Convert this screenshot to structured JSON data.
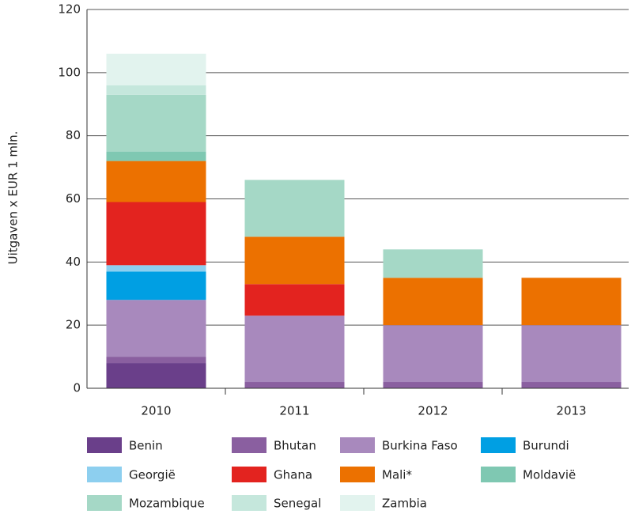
{
  "chart_data": {
    "type": "stacked-bar",
    "y_label": "Uitgaven x EUR 1 mln.",
    "categories": [
      "2010",
      "2011",
      "2012",
      "2013"
    ],
    "series": [
      {
        "name": "Benin",
        "color": "#6a3f8a",
        "values": [
          8,
          0,
          0,
          0
        ]
      },
      {
        "name": "Bhutan",
        "color": "#8a5fa0",
        "values": [
          2,
          2,
          2,
          2
        ]
      },
      {
        "name": "Burkina Faso",
        "color": "#a889bd",
        "values": [
          18,
          21,
          18,
          18
        ]
      },
      {
        "name": "Burundi",
        "color": "#009fe3",
        "values": [
          9,
          0,
          0,
          0
        ]
      },
      {
        "name": "Georgië",
        "color": "#8dcfef",
        "values": [
          2,
          0,
          0,
          0
        ]
      },
      {
        "name": "Ghana",
        "color": "#e3231f",
        "values": [
          20,
          10,
          0,
          0
        ]
      },
      {
        "name": "Mali*",
        "color": "#ec7100",
        "values": [
          13,
          15,
          15,
          15
        ]
      },
      {
        "name": "Moldavië",
        "color": "#7fc8b2",
        "values": [
          3,
          0,
          0,
          0
        ]
      },
      {
        "name": "Mozambique",
        "color": "#a5d8c6",
        "values": [
          18,
          18,
          9,
          0
        ]
      },
      {
        "name": "Senegal",
        "color": "#c5e7dc",
        "values": [
          3,
          0,
          0,
          0
        ]
      },
      {
        "name": "Zambia",
        "color": "#e2f3ee",
        "values": [
          10,
          0,
          0,
          0
        ]
      }
    ],
    "ylim": [
      0,
      120
    ],
    "yticks": [
      0,
      20,
      40,
      60,
      80,
      100,
      120
    ],
    "grid": true,
    "legend": "bottom"
  }
}
